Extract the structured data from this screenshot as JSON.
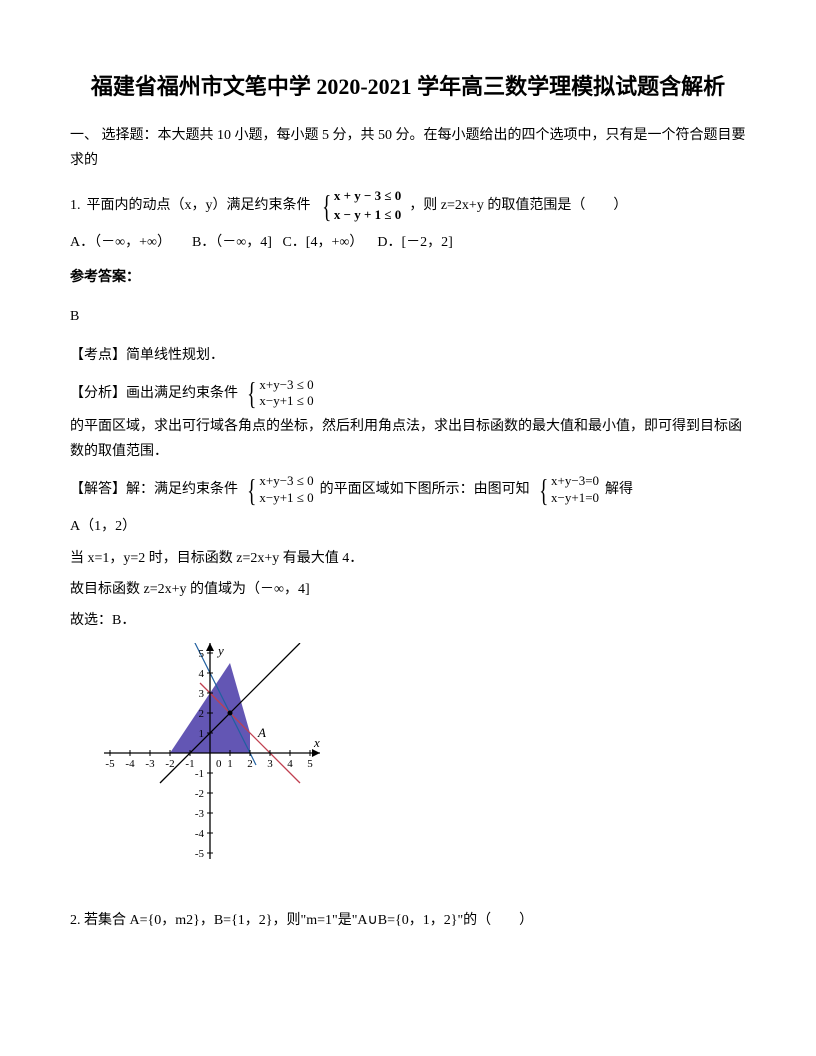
{
  "title": "福建省福州市文笔中学 2020-2021 学年高三数学理模拟试题含解析",
  "section1_header": "一、 选择题：本大题共 10 小题，每小题 5 分，共 50 分。在每小题给出的四个选项中，只有是一个符合题目要求的",
  "q1": {
    "num": "1.",
    "text_before": "平面内的动点（x，y）满足约束条件",
    "constraint1": "x + y − 3 ≤ 0",
    "constraint2": "x − y + 1 ≤ 0",
    "text_after": "，则 z=2x+y 的取值范围是（　　）",
    "optA": "A．（－∞，+∞）",
    "optB": "B．（－∞，4]",
    "optC": "C．[4，+∞）",
    "optD": "D．[－2，2]"
  },
  "ref_label": "参考答案：",
  "q1_answer": "B",
  "q1_kaodian": "【考点】简单线性规划．",
  "q1_fenxi": {
    "prefix": "【分析】画出满足约束条件",
    "c1": "x+y−3 ≤ 0",
    "c2": "x−y+1 ≤ 0",
    "suffix": "的平面区域，求出可行域各角点的坐标，然后利用角点法，求出目标函数的最大值和最小值，即可得到目标函数的取值范围．"
  },
  "q1_jieda": {
    "prefix": "【解答】解：满足约束条件",
    "c1": "x+y−3 ≤ 0",
    "c2": "x−y+1 ≤ 0",
    "mid": "的平面区域如下图所示：由图可知",
    "c3": "x+y−3=0",
    "c4": "x−y+1=0",
    "suffix": "解得"
  },
  "q1_pointA": "A（1，2）",
  "q1_line3": "当 x=1，y=2 时，目标函数 z=2x+y 有最大值 4．",
  "q1_line4": "故目标函数 z=2x+y 的值域为（－∞，4]",
  "q1_line5": "故选：B．",
  "graph": {
    "xmin": -5,
    "xmax": 5,
    "ymin": -5,
    "ymax": 5,
    "axis_color": "#000000",
    "tick_color": "#000000",
    "tick_fontsize": 11,
    "x_label": "x",
    "y_label": "y",
    "point_A_label": "A",
    "fill_color": "#5b4db0",
    "line1_color": "#c04050",
    "line2_color": "#000000",
    "line3_color": "#2060a0",
    "xticks": [
      -5,
      -4,
      -3,
      -2,
      -1,
      0,
      1,
      2,
      3,
      4,
      5
    ],
    "yticks_pos": [
      1,
      2,
      3,
      4,
      5
    ],
    "yticks_neg": [
      -1,
      -2,
      -3,
      -4,
      -5
    ]
  },
  "q2": {
    "num": "2.",
    "text": "若集合 A={0，m2}，B={1，2}，则\"m=1\"是\"A∪B={0，1，2}\"的（　　）"
  }
}
